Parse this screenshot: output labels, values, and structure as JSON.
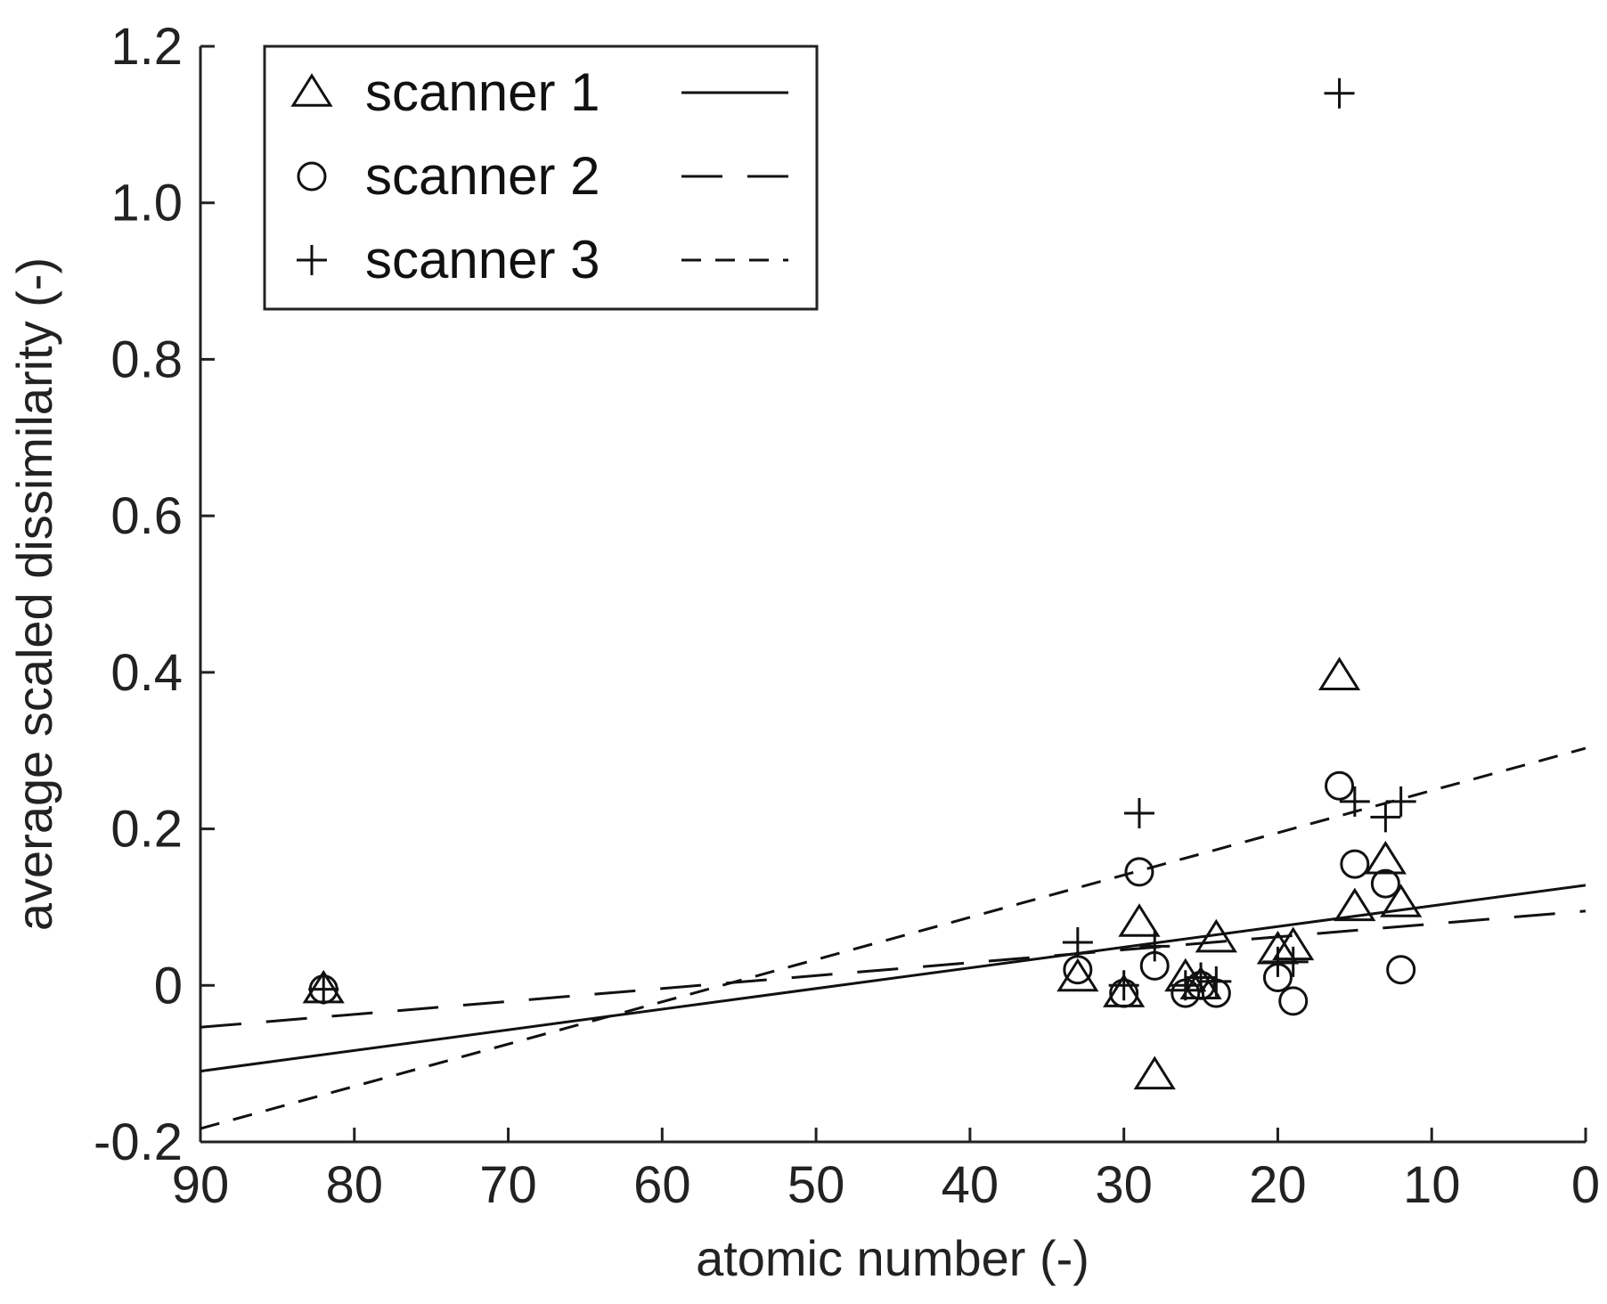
{
  "chart_data": {
    "type": "scatter",
    "xlabel": "atomic number (-)",
    "ylabel": "average scaled dissimilarity (-)",
    "xlim": [
      90,
      0
    ],
    "ylim": [
      -0.2,
      1.2
    ],
    "x_reversed": true,
    "xticks": [
      "90",
      "80",
      "70",
      "60",
      "50",
      "40",
      "30",
      "20",
      "10",
      "0"
    ],
    "yticks": [
      "1.2",
      "1.0",
      "0.8",
      "0.6",
      "0.4",
      "0.2",
      "0",
      "-0.2"
    ],
    "grid": false,
    "legend_position": "top-left",
    "series": [
      {
        "name": "scanner 1",
        "marker": "triangle",
        "line_style": "solid",
        "fit": {
          "slope": -0.00264,
          "intercept": 0.128
        },
        "points": [
          {
            "x": 82,
            "y": -0.005
          },
          {
            "x": 33,
            "y": 0.01
          },
          {
            "x": 30,
            "y": -0.01
          },
          {
            "x": 29,
            "y": 0.08
          },
          {
            "x": 28,
            "y": -0.115
          },
          {
            "x": 26,
            "y": 0.01
          },
          {
            "x": 25,
            "y": 0.0
          },
          {
            "x": 24,
            "y": 0.06
          },
          {
            "x": 20,
            "y": 0.045
          },
          {
            "x": 19,
            "y": 0.05
          },
          {
            "x": 16,
            "y": 0.395
          },
          {
            "x": 15,
            "y": 0.1
          },
          {
            "x": 13,
            "y": 0.16
          },
          {
            "x": 12,
            "y": 0.105
          }
        ]
      },
      {
        "name": "scanner 2",
        "marker": "circle",
        "line_style": "longdash",
        "fit": {
          "slope": -0.00165,
          "intercept": 0.095
        },
        "points": [
          {
            "x": 82,
            "y": -0.005
          },
          {
            "x": 33,
            "y": 0.02
          },
          {
            "x": 30,
            "y": -0.01
          },
          {
            "x": 29,
            "y": 0.145
          },
          {
            "x": 28,
            "y": 0.025
          },
          {
            "x": 26,
            "y": -0.01
          },
          {
            "x": 25,
            "y": 0.0
          },
          {
            "x": 24,
            "y": -0.01
          },
          {
            "x": 20,
            "y": 0.01
          },
          {
            "x": 19,
            "y": -0.02
          },
          {
            "x": 16,
            "y": 0.255
          },
          {
            "x": 15,
            "y": 0.155
          },
          {
            "x": 13,
            "y": 0.13
          },
          {
            "x": 12,
            "y": 0.02
          }
        ]
      },
      {
        "name": "scanner 3",
        "marker": "plus",
        "line_style": "shortdash",
        "fit": {
          "slope": -0.0054,
          "intercept": 0.303
        },
        "points": [
          {
            "x": 82,
            "y": -0.005
          },
          {
            "x": 33,
            "y": 0.055
          },
          {
            "x": 30,
            "y": 0.0
          },
          {
            "x": 29,
            "y": 0.22
          },
          {
            "x": 28,
            "y": 0.05
          },
          {
            "x": 26,
            "y": 0.0
          },
          {
            "x": 25,
            "y": 0.01
          },
          {
            "x": 24,
            "y": 0.005
          },
          {
            "x": 20,
            "y": 0.03
          },
          {
            "x": 19,
            "y": 0.03
          },
          {
            "x": 16,
            "y": 1.14
          },
          {
            "x": 15,
            "y": 0.235
          },
          {
            "x": 13,
            "y": 0.215
          },
          {
            "x": 12,
            "y": 0.235
          }
        ]
      }
    ]
  }
}
